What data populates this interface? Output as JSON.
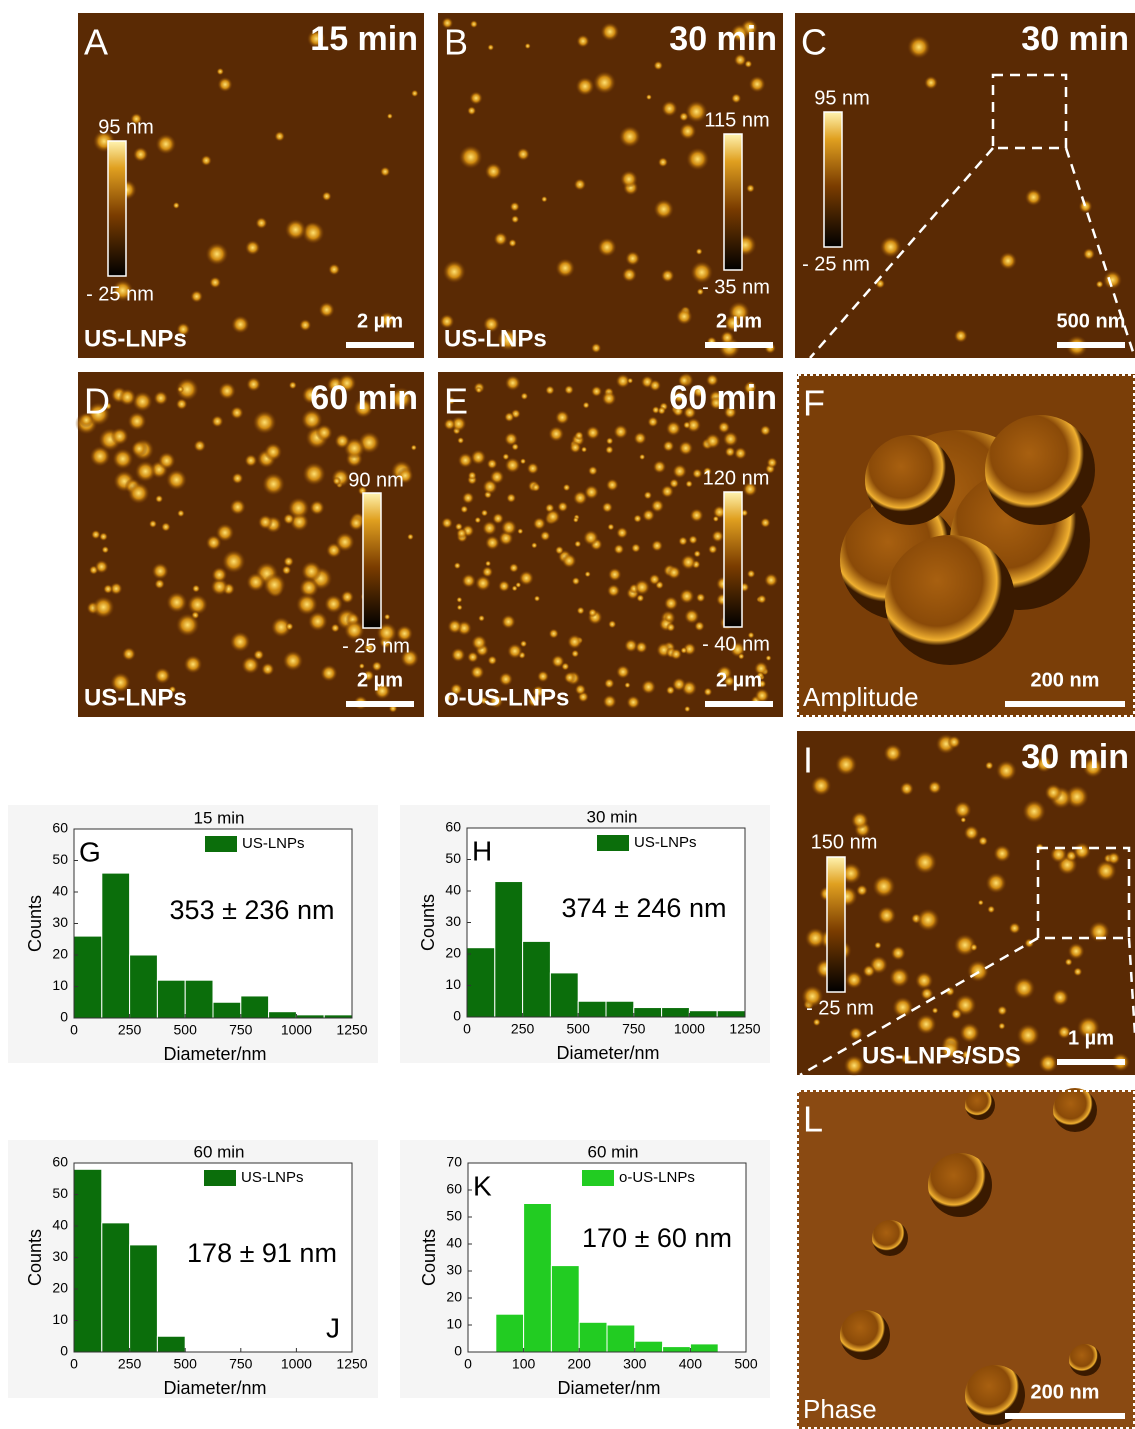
{
  "images": [
    {
      "panel": "A",
      "time": "15 min",
      "sample": "US-LNPs",
      "scale_bar": "2 µm",
      "colorbar": [
        "95 nm",
        "- 25 nm"
      ]
    },
    {
      "panel": "B",
      "time": "30 min",
      "sample": "US-LNPs",
      "scale_bar": "2 µm",
      "colorbar": [
        "115 nm",
        "- 35 nm"
      ]
    },
    {
      "panel": "C",
      "time": "30 min",
      "scale_bar": "500 nm",
      "colorbar": [
        "95 nm",
        "- 25 nm"
      ]
    },
    {
      "panel": "D",
      "time": "60 min",
      "sample": "US-LNPs",
      "scale_bar": "2 µm",
      "colorbar": [
        "90 nm",
        "- 25 nm"
      ]
    },
    {
      "panel": "E",
      "time": "60 min",
      "sample": "o-US-LNPs",
      "scale_bar": "2 µm",
      "colorbar": [
        "120 nm",
        "- 40 nm"
      ]
    },
    {
      "panel": "F",
      "mode": "Amplitude",
      "scale_bar": "200 nm"
    },
    {
      "panel": "I",
      "time": "30 min",
      "sample": "US-LNPs/SDS",
      "scale_bar": "1 µm",
      "colorbar": [
        "150 nm",
        "- 25 nm"
      ]
    },
    {
      "panel": "L",
      "mode": "Phase",
      "scale_bar": "200 nm"
    }
  ],
  "chart_data": [
    {
      "type": "histogram",
      "panel": "G",
      "title": "15 min",
      "xlabel": "Diameter/nm",
      "ylabel": "Counts",
      "annotation": "353 ± 236 nm",
      "bins": [
        0,
        125,
        250,
        375,
        500,
        625,
        750,
        875,
        1000,
        1125,
        1250
      ],
      "series": [
        {
          "name": "US-LNPs",
          "color": "#0b6e0b",
          "values": [
            26,
            46,
            20,
            12,
            12,
            5,
            7,
            2,
            1,
            1
          ]
        }
      ],
      "xlim": [
        0,
        1250
      ],
      "xticks": [
        0,
        250,
        500,
        750,
        1000,
        1250
      ],
      "ylim": [
        0,
        60
      ],
      "yticks": [
        0,
        10,
        20,
        30,
        40,
        50,
        60
      ]
    },
    {
      "type": "histogram",
      "panel": "H",
      "title": "30 min",
      "xlabel": "Diameter/nm",
      "ylabel": "Counts",
      "annotation": "374 ± 246 nm",
      "bins": [
        0,
        125,
        250,
        375,
        500,
        625,
        750,
        875,
        1000,
        1125,
        1250
      ],
      "series": [
        {
          "name": "US-LNPs",
          "color": "#0b6e0b",
          "values": [
            22,
            43,
            24,
            14,
            5,
            5,
            3,
            3,
            2,
            2
          ]
        }
      ],
      "xlim": [
        0,
        1250
      ],
      "xticks": [
        0,
        250,
        500,
        750,
        1000,
        1250
      ],
      "ylim": [
        0,
        60
      ],
      "yticks": [
        0,
        10,
        20,
        30,
        40,
        50,
        60
      ]
    },
    {
      "type": "histogram",
      "panel": "J",
      "title": "60 min",
      "xlabel": "Diameter/nm",
      "ylabel": "Counts",
      "annotation": "178 ± 91 nm",
      "bins": [
        0,
        125,
        250,
        375,
        500
      ],
      "series": [
        {
          "name": "US-LNPs",
          "color": "#0b6e0b",
          "values": [
            58,
            41,
            34,
            5
          ]
        }
      ],
      "xlim": [
        0,
        1250
      ],
      "xticks": [
        0,
        250,
        500,
        750,
        1000,
        1250
      ],
      "ylim": [
        0,
        60
      ],
      "yticks": [
        0,
        10,
        20,
        30,
        40,
        50,
        60
      ]
    },
    {
      "type": "histogram",
      "panel": "K",
      "title": "60 min",
      "xlabel": "Diameter/nm",
      "ylabel": "Counts",
      "annotation": "170 ± 60 nm",
      "bins": [
        50,
        100,
        150,
        200,
        250,
        300,
        350,
        400,
        450
      ],
      "series": [
        {
          "name": "o-US-LNPs",
          "color": "#22cc22",
          "values": [
            14,
            55,
            32,
            11,
            10,
            4,
            2,
            3
          ]
        }
      ],
      "xlim": [
        0,
        500
      ],
      "xticks": [
        0,
        100,
        200,
        300,
        400,
        500
      ],
      "ylim": [
        0,
        70
      ],
      "yticks": [
        0,
        10,
        20,
        30,
        40,
        50,
        60,
        70
      ]
    }
  ]
}
